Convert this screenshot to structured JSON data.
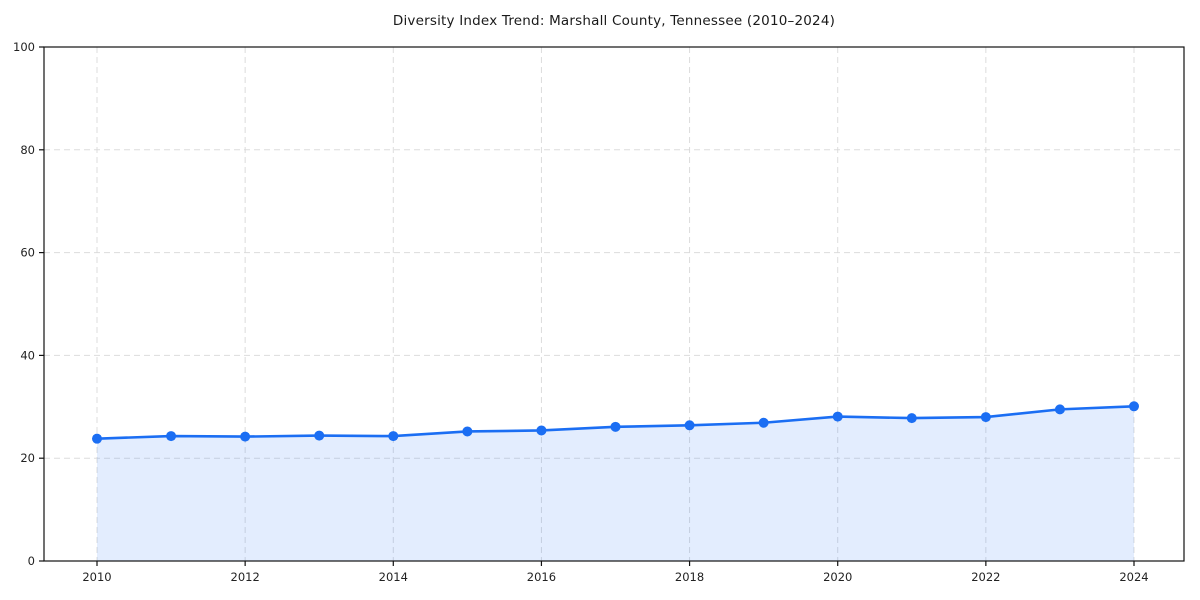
{
  "chart_data": {
    "type": "area",
    "title": "Diversity Index Trend: Marshall County, Tennessee (2010–2024)",
    "series_name": "Diversity Index",
    "x": [
      2010,
      2011,
      2012,
      2013,
      2014,
      2015,
      2016,
      2017,
      2018,
      2019,
      2020,
      2021,
      2022,
      2023,
      2024
    ],
    "values": [
      23.8,
      24.3,
      24.2,
      24.4,
      24.3,
      25.2,
      25.4,
      26.1,
      26.4,
      26.9,
      28.1,
      27.8,
      28.0,
      29.5,
      30.1
    ],
    "xlabel": "",
    "ylabel": "",
    "ylim": [
      0,
      100
    ],
    "yticks": [
      0,
      20,
      40,
      60,
      80,
      100
    ],
    "xticks": [
      2010,
      2012,
      2014,
      2016,
      2018,
      2020,
      2022,
      2024
    ],
    "grid": true,
    "legend": "none",
    "colors": {
      "line": "#1b6ef3",
      "marker": "#1b6ef3",
      "fill": "#1b6ef3",
      "fill_opacity": 0.12,
      "gridline": "#d9d9d9",
      "spine": "#111111",
      "tick_text": "#222222",
      "title_text": "#1a1a1a",
      "background": "#ffffff"
    }
  }
}
